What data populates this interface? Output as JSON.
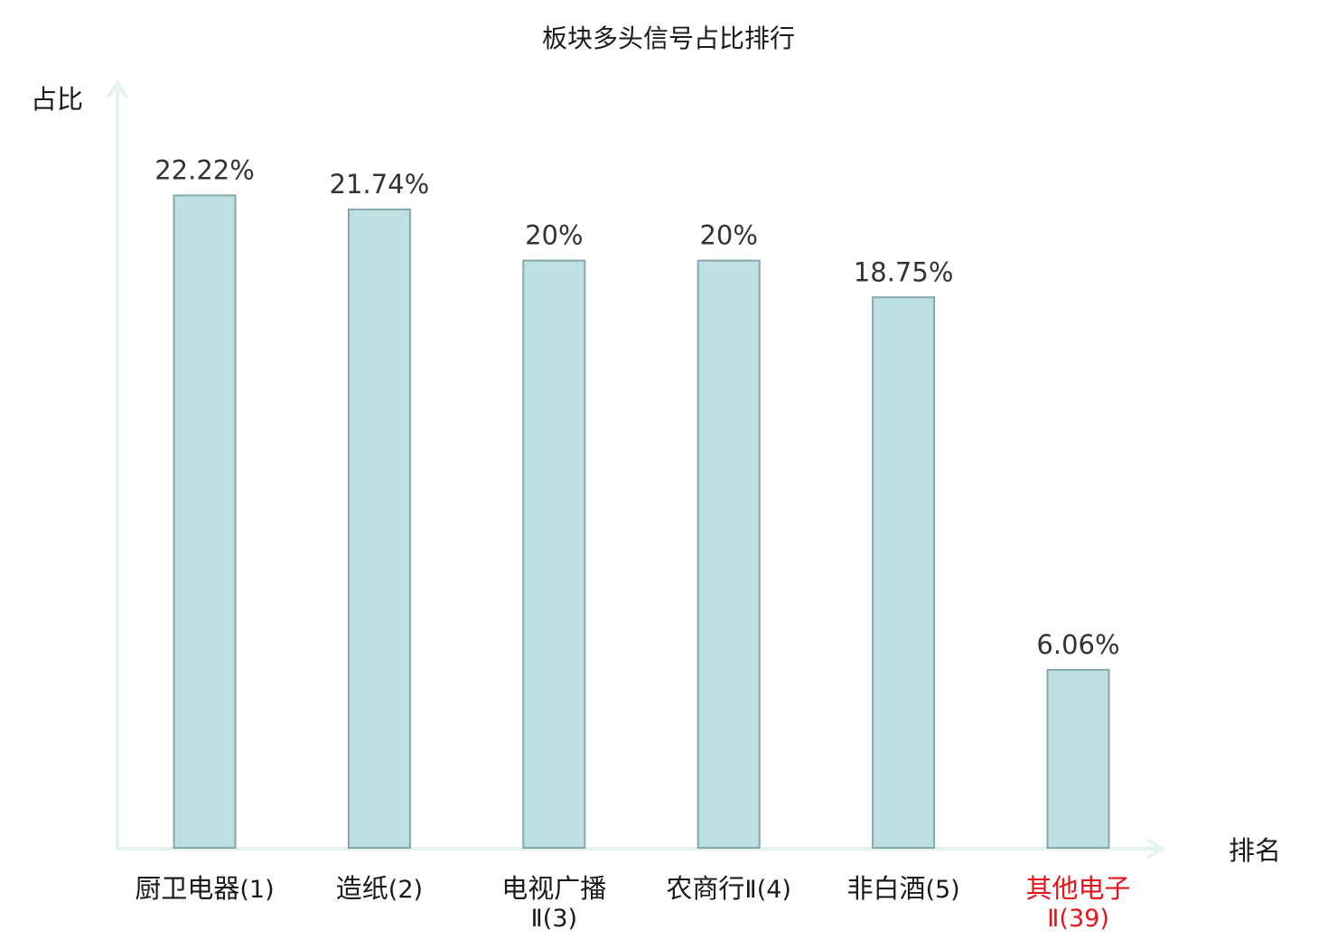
{
  "chart_data": {
    "type": "bar",
    "title": "板块多头信号占比排行",
    "xlabel": "排名",
    "ylabel": "占比",
    "categories": [
      {
        "name": "厨卫电器",
        "rank": "(1)",
        "highlight": false
      },
      {
        "name": "造纸",
        "rank": "(2)",
        "highlight": false
      },
      {
        "name": "电视广播",
        "rank": "Ⅱ(3)",
        "highlight": false
      },
      {
        "name": "农商行",
        "rank": "Ⅱ(4)",
        "highlight": false
      },
      {
        "name": "非白酒",
        "rank": "(5)",
        "highlight": false
      },
      {
        "name": "其他电子",
        "rank": "Ⅱ(39)",
        "highlight": true
      }
    ],
    "values": [
      22.22,
      21.74,
      20,
      20,
      18.75,
      6.06
    ],
    "value_labels": [
      "22.22%",
      "21.74%",
      "20%",
      "20%",
      "18.75%",
      "6.06%"
    ],
    "ylim": [
      0,
      25
    ],
    "grid": false,
    "legend": "none"
  },
  "colors": {
    "bar_fill": "#bde0e3",
    "bar_stroke": "#86a8aa",
    "axis": "#e3f3ef",
    "text": "#1a1a1a",
    "value_label": "#333333",
    "highlight": "#e8141b"
  }
}
